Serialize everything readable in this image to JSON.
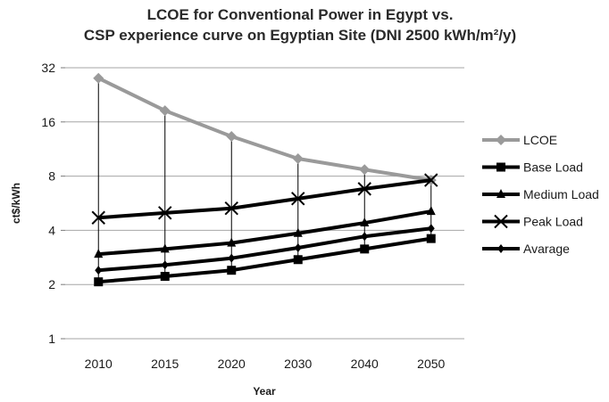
{
  "chart_data": {
    "type": "line",
    "title_lines": [
      "LCOE for Conventional Power in Egypt vs.",
      "CSP experience curve on Egyptian Site (DNI 2500 kWh/m²/y)"
    ],
    "xlabel": "Year",
    "ylabel": "ct$/kWh",
    "categories": [
      "2010",
      "2015",
      "2020",
      "2030",
      "2040",
      "2050"
    ],
    "y_scale": "log2",
    "ylim": [
      1,
      32
    ],
    "y_ticks": [
      1,
      2,
      4,
      8,
      16,
      32
    ],
    "y_tick_labels": [
      "1",
      "2",
      "4",
      "8",
      "16",
      "32"
    ],
    "grid": "horizontal",
    "legend_position": "right",
    "series": [
      {
        "name": "LCOE",
        "marker": "diamond",
        "color": "#9a9a9a",
        "values": [
          28,
          18.5,
          13.3,
          10.0,
          8.7,
          7.6
        ]
      },
      {
        "name": "Base Load",
        "marker": "square",
        "color": "#000000",
        "values": [
          2.07,
          2.22,
          2.4,
          2.75,
          3.15,
          3.6
        ]
      },
      {
        "name": "Medium Load",
        "marker": "triangle",
        "color": "#000000",
        "values": [
          2.95,
          3.15,
          3.4,
          3.85,
          4.4,
          5.1
        ]
      },
      {
        "name": "Peak Load",
        "marker": "x",
        "color": "#000000",
        "values": [
          4.7,
          5.0,
          5.3,
          6.0,
          6.8,
          7.6
        ]
      },
      {
        "name": "Avarage",
        "marker": "diamond-small",
        "color": "#000000",
        "values": [
          2.4,
          2.57,
          2.8,
          3.2,
          3.7,
          4.1
        ]
      }
    ]
  }
}
